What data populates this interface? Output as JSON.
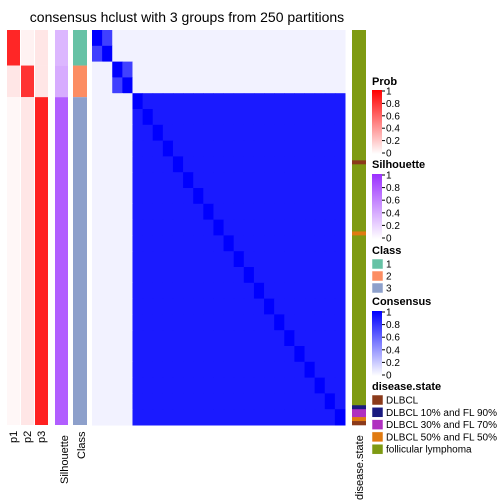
{
  "chart_data": {
    "type": "heatmap",
    "title": "consensus hclust with 3 groups from 250 partitions",
    "column_labels": [
      "p1",
      "p2",
      "p3",
      "Silhouette",
      "Class"
    ],
    "right_column_label": "disease.state",
    "legends": {
      "prob": {
        "title": "Prob",
        "ticks": [
          "1",
          "0.8",
          "0.6",
          "0.4",
          "0.2",
          "0"
        ]
      },
      "silhouette": {
        "title": "Silhouette",
        "ticks": [
          "1",
          "0.8",
          "0.6",
          "0.4",
          "0.2",
          "0"
        ]
      },
      "class": {
        "title": "Class",
        "items": [
          {
            "label": "1",
            "color": "#66C2A5"
          },
          {
            "label": "2",
            "color": "#FC8D62"
          },
          {
            "label": "3",
            "color": "#8DA0CB"
          }
        ]
      },
      "consensus": {
        "title": "Consensus",
        "ticks": [
          "1",
          "0.8",
          "0.6",
          "0.4",
          "0.2",
          "0"
        ]
      },
      "disease_state": {
        "title": "disease.state",
        "items": [
          {
            "label": "DLBCL",
            "color": "#8B3A1A"
          },
          {
            "label": "DLBCL 10% and FL 90%",
            "color": "#1A1A80"
          },
          {
            "label": "DLBCL 30% and FL 70%",
            "color": "#B030C0"
          },
          {
            "label": "DLBCL 50% and FL 50%",
            "color": "#E07A10"
          },
          {
            "label": "follicular lymphoma",
            "color": "#7E9A12"
          }
        ]
      }
    },
    "groups": [
      {
        "class": 1,
        "size": 9,
        "prob": [
          0.85,
          0.05,
          0.1
        ],
        "silhouette": 0.35
      },
      {
        "class": 2,
        "size": 8,
        "prob": [
          0.1,
          0.8,
          0.1
        ],
        "silhouette": 0.4
      },
      {
        "class": 3,
        "size": 83,
        "prob": [
          0.03,
          0.1,
          0.87
        ],
        "silhouette": 0.78
      }
    ],
    "disease_state_segments": [
      {
        "state": "follicular lymphoma",
        "count": 33
      },
      {
        "state": "DLBCL",
        "count": 1
      },
      {
        "state": "follicular lymphoma",
        "count": 17
      },
      {
        "state": "DLBCL 50% and FL 50%",
        "count": 1
      },
      {
        "state": "follicular lymphoma",
        "count": 43
      },
      {
        "state": "DLBCL 10% and FL 90%",
        "count": 1
      },
      {
        "state": "DLBCL 30% and FL 70%",
        "count": 2
      },
      {
        "state": "DLBCL 50% and FL 50%",
        "count": 1
      },
      {
        "state": "DLBCL",
        "count": 1
      }
    ],
    "colors": {
      "prob": "#FF0000",
      "silhouette": "#9B30FF",
      "consensus": "#0000FF"
    }
  }
}
